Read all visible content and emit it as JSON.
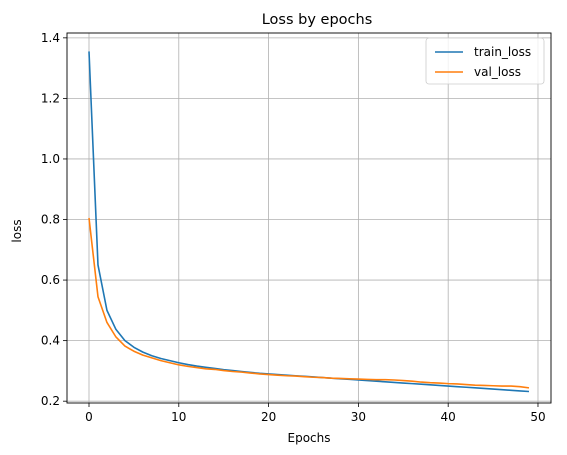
{
  "chart_data": {
    "type": "line",
    "title": "Loss by epochs",
    "xlabel": "Epochs",
    "ylabel": "loss",
    "xlim": [
      -2.45,
      51.45
    ],
    "ylim": [
      0.194,
      1.416
    ],
    "xticks": [
      0,
      10,
      20,
      30,
      40,
      50
    ],
    "yticks": [
      0.2,
      0.4,
      0.6,
      0.8,
      1.0,
      1.2,
      1.4
    ],
    "ytick_labels": [
      "0.2",
      "0.4",
      "0.6",
      "0.8",
      "1.0",
      "1.2",
      "1.4"
    ],
    "grid": true,
    "legend_position": "top-right",
    "x": [
      0,
      1,
      2,
      3,
      4,
      5,
      6,
      7,
      8,
      9,
      10,
      11,
      12,
      13,
      14,
      15,
      16,
      17,
      18,
      19,
      20,
      21,
      22,
      23,
      24,
      25,
      26,
      27,
      28,
      29,
      30,
      31,
      32,
      33,
      34,
      35,
      36,
      37,
      38,
      39,
      40,
      41,
      42,
      43,
      44,
      45,
      46,
      47,
      48,
      49
    ],
    "series": [
      {
        "name": "train_loss",
        "color": "#1f77b4",
        "values": [
          1.355,
          0.65,
          0.5,
          0.437,
          0.4,
          0.378,
          0.362,
          0.35,
          0.341,
          0.334,
          0.327,
          0.321,
          0.316,
          0.312,
          0.308,
          0.304,
          0.301,
          0.298,
          0.295,
          0.292,
          0.29,
          0.288,
          0.286,
          0.284,
          0.282,
          0.28,
          0.278,
          0.276,
          0.274,
          0.272,
          0.27,
          0.268,
          0.266,
          0.264,
          0.262,
          0.26,
          0.258,
          0.256,
          0.254,
          0.252,
          0.25,
          0.248,
          0.246,
          0.244,
          0.242,
          0.24,
          0.238,
          0.236,
          0.234,
          0.232
        ]
      },
      {
        "name": "val_loss",
        "color": "#ff7f0e",
        "values": [
          0.805,
          0.545,
          0.46,
          0.412,
          0.382,
          0.365,
          0.352,
          0.343,
          0.334,
          0.327,
          0.32,
          0.315,
          0.311,
          0.307,
          0.305,
          0.301,
          0.298,
          0.296,
          0.293,
          0.29,
          0.288,
          0.286,
          0.284,
          0.283,
          0.281,
          0.279,
          0.278,
          0.276,
          0.275,
          0.274,
          0.273,
          0.272,
          0.271,
          0.271,
          0.27,
          0.268,
          0.266,
          0.263,
          0.261,
          0.26,
          0.258,
          0.257,
          0.255,
          0.253,
          0.252,
          0.251,
          0.25,
          0.25,
          0.248,
          0.244
        ]
      }
    ]
  }
}
